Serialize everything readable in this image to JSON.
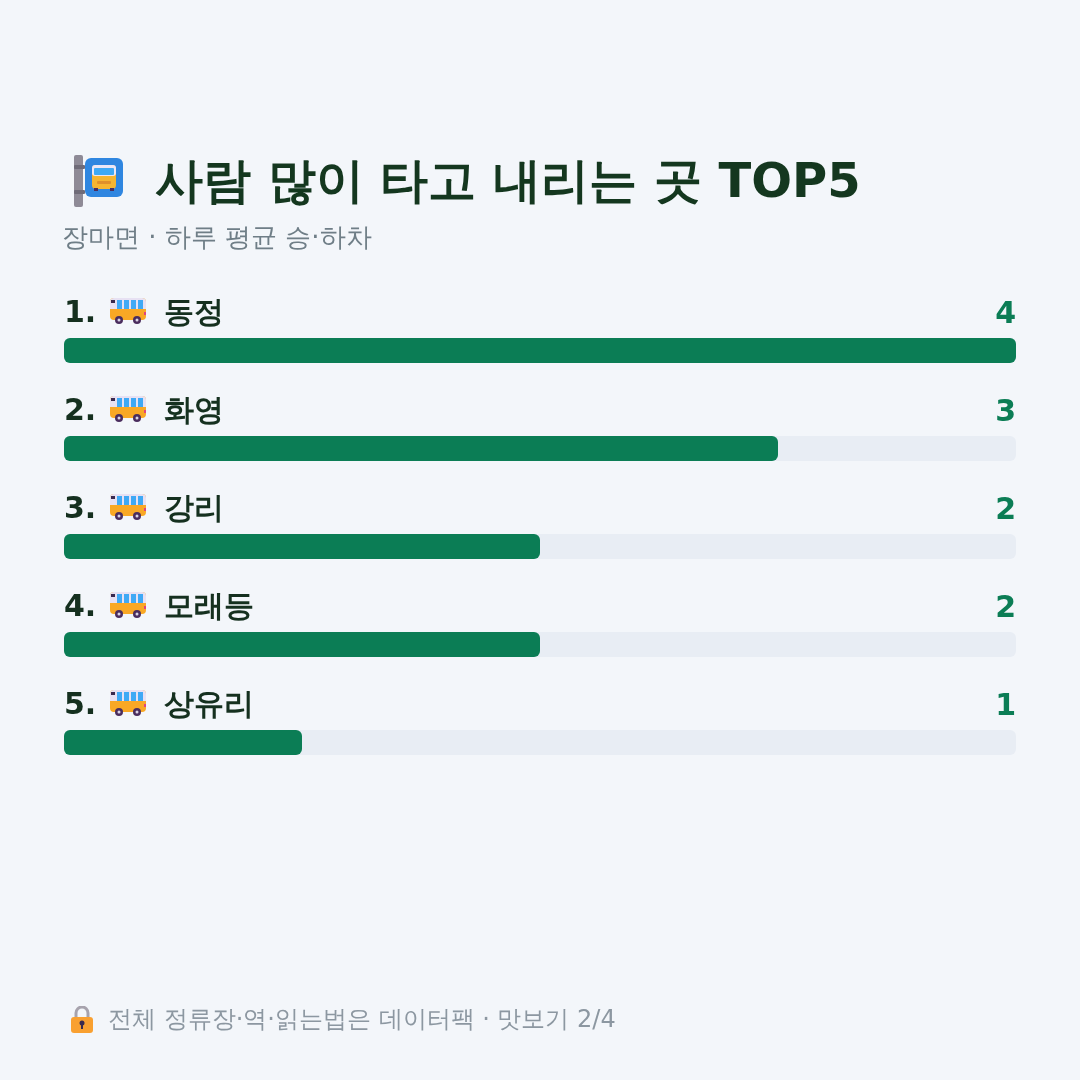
{
  "chart_data": {
    "type": "bar",
    "orientation": "horizontal",
    "title": "사람 많이 타고 내리는 곳 TOP5",
    "subtitle": "장마면 · 하루 평균 승·하차",
    "categories": [
      "1. 동정",
      "2. 화영",
      "3. 강리",
      "4. 모래등",
      "5. 상유리"
    ],
    "values": [
      4,
      3,
      2,
      2,
      1
    ],
    "color": "#0b7d55",
    "xlim": [
      0,
      4
    ],
    "data_labels": true,
    "tick_labels": "y",
    "annotations": [
      "전체 정류장·역·읽는법은 데이터팩 · 맛보기 2/4"
    ]
  }
}
